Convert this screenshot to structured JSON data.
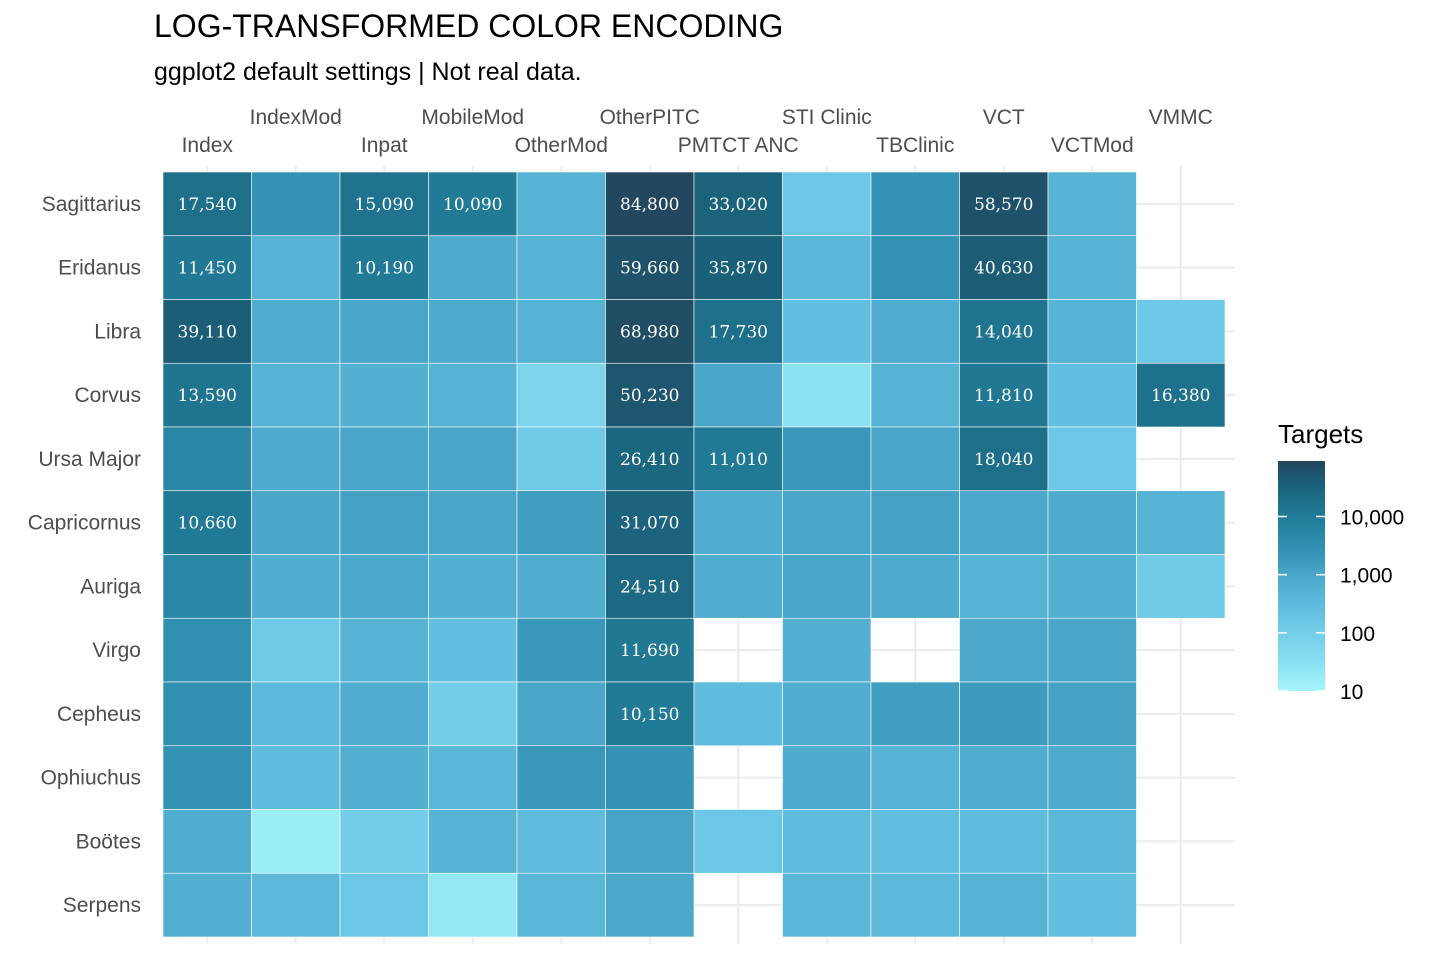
{
  "chart_data": {
    "type": "heatmap",
    "title": "LOG-TRANSFORMED COLOR ENCODING",
    "subtitle": "ggplot2 default settings | Not real data.",
    "x_categories": [
      "Index",
      "IndexMod",
      "Inpat",
      "MobileMod",
      "OtherMod",
      "OtherPITC",
      "PMTCT ANC",
      "STI Clinic",
      "TBClinic",
      "VCT",
      "VCTMod",
      "VMMC"
    ],
    "x_axis_position": "top",
    "y_categories": [
      "Sagittarius",
      "Eridanus",
      "Libra",
      "Corvus",
      "Ursa Major",
      "Capricornus",
      "Auriga",
      "Virgo",
      "Cepheus",
      "Ophiuchus",
      "Boötes",
      "Serpens"
    ],
    "color_scale": {
      "type": "log10",
      "low_color": "#a5f5fb",
      "high_color": "#23455d",
      "domain": [
        10,
        90000
      ]
    },
    "legend": {
      "title": "Targets",
      "breaks": [
        10,
        100,
        1000,
        10000
      ],
      "labels": [
        "10",
        "100",
        "1,000",
        "10,000"
      ],
      "position": "right"
    },
    "grid": true,
    "values": [
      [
        17540,
        2500,
        15090,
        10090,
        500,
        84800,
        33020,
        150,
        2500,
        58570,
        500,
        null
      ],
      [
        11450,
        500,
        10190,
        800,
        500,
        59660,
        35870,
        400,
        2500,
        40630,
        500,
        null
      ],
      [
        39110,
        700,
        1000,
        800,
        500,
        68980,
        17730,
        250,
        700,
        14040,
        500,
        140
      ],
      [
        13590,
        500,
        600,
        500,
        60,
        50230,
        1000,
        25,
        500,
        11810,
        250,
        16380
      ],
      [
        5000,
        800,
        1000,
        1000,
        120,
        26410,
        11010,
        2000,
        1000,
        18040,
        150,
        null
      ],
      [
        10660,
        1000,
        1200,
        1000,
        1500,
        31070,
        700,
        1000,
        1200,
        900,
        800,
        500
      ],
      [
        5000,
        700,
        900,
        600,
        700,
        24510,
        700,
        1000,
        800,
        500,
        600,
        120
      ],
      [
        3000,
        130,
        500,
        250,
        2000,
        11690,
        null,
        600,
        null,
        900,
        1000,
        null
      ],
      [
        3000,
        350,
        700,
        100,
        1000,
        10150,
        300,
        700,
        1500,
        1700,
        1200,
        null
      ],
      [
        2500,
        300,
        600,
        400,
        2000,
        2500,
        null,
        800,
        500,
        700,
        800,
        null
      ],
      [
        700,
        15,
        100,
        500,
        300,
        1100,
        150,
        300,
        250,
        300,
        400,
        null
      ],
      [
        600,
        350,
        150,
        20,
        400,
        900,
        null,
        400,
        350,
        500,
        250,
        null
      ]
    ]
  }
}
